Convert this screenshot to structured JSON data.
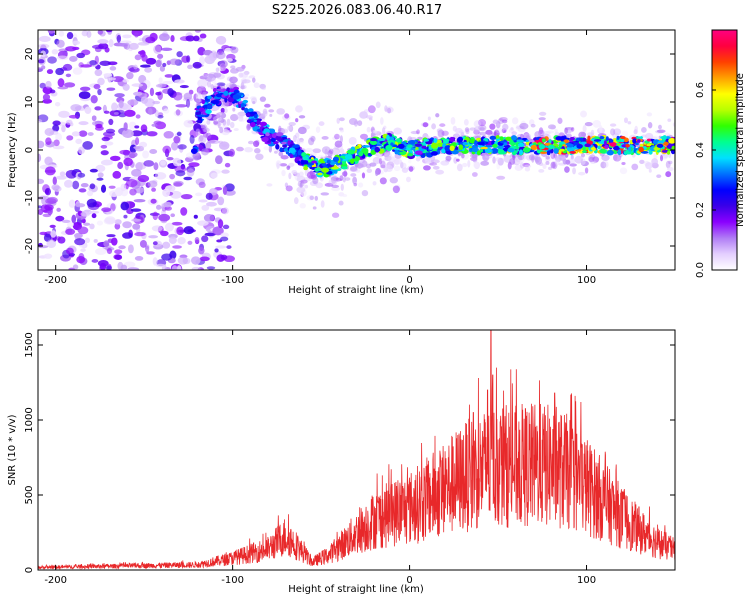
{
  "chart_data": [
    {
      "type": "heatmap",
      "title": "S225.2026.083.06.40.R17",
      "xlabel": "Height of straight line (km)",
      "ylabel": "Frequency (Hz)",
      "xlim": [
        -210,
        150
      ],
      "ylim": [
        -25,
        25
      ],
      "xticks": [
        -200,
        -100,
        0,
        100
      ],
      "yticks": [
        -20,
        -10,
        0,
        10,
        20
      ],
      "colorbar": {
        "label": "Normalized spectral amplitude",
        "range": [
          0.0,
          0.8
        ],
        "ticks": [
          0.0,
          0.2,
          0.4,
          0.6
        ],
        "colormap": [
          "#ffffff",
          "#e4cfff",
          "#b07cf5",
          "#8a00ff",
          "#3a00e8",
          "#0000ff",
          "#0070ff",
          "#00e0ff",
          "#00ff90",
          "#30ff00",
          "#b8ff00",
          "#ffff00",
          "#ffa000",
          "#ff4000",
          "#ff0040",
          "#ff0080"
        ]
      },
      "signal_track": [
        {
          "x": -120,
          "f": 7
        },
        {
          "x": -110,
          "f": 11
        },
        {
          "x": -100,
          "f": 12
        },
        {
          "x": -95,
          "f": 10
        },
        {
          "x": -90,
          "f": 7
        },
        {
          "x": -80,
          "f": 3
        },
        {
          "x": -70,
          "f": 1
        },
        {
          "x": -60,
          "f": -2
        },
        {
          "x": -50,
          "f": -4
        },
        {
          "x": -40,
          "f": -3
        },
        {
          "x": -30,
          "f": -1
        },
        {
          "x": -20,
          "f": 1
        },
        {
          "x": -10,
          "f": 1.5
        },
        {
          "x": 0,
          "f": 0
        },
        {
          "x": 20,
          "f": 1
        },
        {
          "x": 50,
          "f": 1
        },
        {
          "x": 80,
          "f": 1
        },
        {
          "x": 110,
          "f": 1
        },
        {
          "x": 150,
          "f": 1
        }
      ],
      "noise_region": [
        -210,
        -115
      ]
    },
    {
      "type": "line",
      "xlabel": "Height of straight line (km)",
      "ylabel": "SNR (10 * v/v)",
      "xlim": [
        -210,
        150
      ],
      "ylim": [
        0,
        1600
      ],
      "xticks": [
        -200,
        -100,
        0,
        100
      ],
      "yticks": [
        0,
        500,
        1000,
        1500
      ],
      "line_color": "#e8282a",
      "envelope": [
        {
          "x": -210,
          "y": 20
        },
        {
          "x": -120,
          "y": 40
        },
        {
          "x": -100,
          "y": 90
        },
        {
          "x": -80,
          "y": 160
        },
        {
          "x": -70,
          "y": 260
        },
        {
          "x": -65,
          "y": 200
        },
        {
          "x": -55,
          "y": 60
        },
        {
          "x": -45,
          "y": 120
        },
        {
          "x": -30,
          "y": 280
        },
        {
          "x": -20,
          "y": 380
        },
        {
          "x": -10,
          "y": 430
        },
        {
          "x": 0,
          "y": 470
        },
        {
          "x": 10,
          "y": 540
        },
        {
          "x": 20,
          "y": 620
        },
        {
          "x": 30,
          "y": 700
        },
        {
          "x": 40,
          "y": 760
        },
        {
          "x": 50,
          "y": 800
        },
        {
          "x": 60,
          "y": 790
        },
        {
          "x": 70,
          "y": 800
        },
        {
          "x": 80,
          "y": 790
        },
        {
          "x": 90,
          "y": 740
        },
        {
          "x": 100,
          "y": 640
        },
        {
          "x": 110,
          "y": 520
        },
        {
          "x": 120,
          "y": 400
        },
        {
          "x": 130,
          "y": 300
        },
        {
          "x": 140,
          "y": 210
        },
        {
          "x": 150,
          "y": 150
        }
      ],
      "peaks": [
        {
          "x": 46,
          "y": 1600
        },
        {
          "x": 47,
          "y": 1300
        },
        {
          "x": 44,
          "y": 1200
        },
        {
          "x": 82,
          "y": 1180
        },
        {
          "x": 36,
          "y": 1050
        }
      ]
    }
  ]
}
